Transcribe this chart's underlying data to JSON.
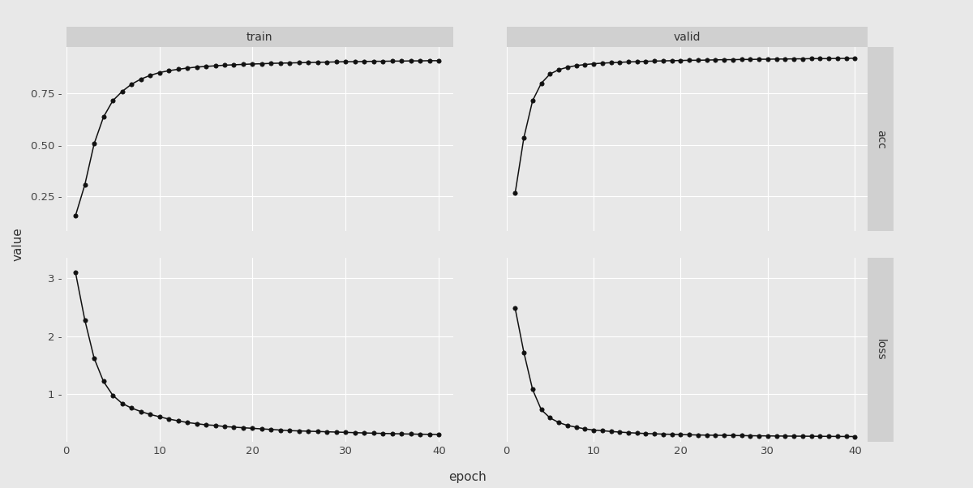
{
  "epochs": [
    1,
    2,
    3,
    4,
    5,
    6,
    7,
    8,
    9,
    10,
    11,
    12,
    13,
    14,
    15,
    16,
    17,
    18,
    19,
    20,
    21,
    22,
    23,
    24,
    25,
    26,
    27,
    28,
    29,
    30,
    31,
    32,
    33,
    34,
    35,
    36,
    37,
    38,
    39,
    40
  ],
  "train_acc": [
    0.155,
    0.305,
    0.505,
    0.635,
    0.715,
    0.76,
    0.795,
    0.82,
    0.838,
    0.852,
    0.861,
    0.868,
    0.874,
    0.879,
    0.882,
    0.885,
    0.888,
    0.89,
    0.892,
    0.894,
    0.895,
    0.897,
    0.898,
    0.899,
    0.9,
    0.901,
    0.902,
    0.903,
    0.904,
    0.905,
    0.905,
    0.906,
    0.907,
    0.907,
    0.908,
    0.908,
    0.909,
    0.909,
    0.91,
    0.91
  ],
  "train_loss": [
    3.1,
    2.28,
    1.62,
    1.22,
    0.98,
    0.84,
    0.76,
    0.7,
    0.65,
    0.61,
    0.57,
    0.54,
    0.51,
    0.49,
    0.47,
    0.46,
    0.44,
    0.43,
    0.42,
    0.41,
    0.4,
    0.39,
    0.38,
    0.37,
    0.365,
    0.36,
    0.355,
    0.35,
    0.345,
    0.34,
    0.335,
    0.33,
    0.326,
    0.322,
    0.318,
    0.314,
    0.311,
    0.308,
    0.306,
    0.303
  ],
  "valid_acc": [
    0.265,
    0.535,
    0.715,
    0.8,
    0.845,
    0.866,
    0.878,
    0.886,
    0.891,
    0.895,
    0.898,
    0.9,
    0.902,
    0.904,
    0.905,
    0.907,
    0.908,
    0.909,
    0.91,
    0.911,
    0.912,
    0.912,
    0.913,
    0.914,
    0.915,
    0.915,
    0.916,
    0.916,
    0.917,
    0.917,
    0.918,
    0.918,
    0.919,
    0.919,
    0.92,
    0.92,
    0.92,
    0.921,
    0.921,
    0.922
  ],
  "valid_loss": [
    2.48,
    1.72,
    1.08,
    0.73,
    0.59,
    0.51,
    0.46,
    0.43,
    0.4,
    0.38,
    0.37,
    0.355,
    0.345,
    0.335,
    0.327,
    0.32,
    0.315,
    0.31,
    0.306,
    0.302,
    0.298,
    0.295,
    0.292,
    0.29,
    0.288,
    0.286,
    0.284,
    0.282,
    0.28,
    0.279,
    0.277,
    0.276,
    0.275,
    0.274,
    0.273,
    0.272,
    0.271,
    0.27,
    0.269,
    0.268
  ],
  "bg_color": "#e8e8e8",
  "panel_bg": "#e8e8e8",
  "strip_bg": "#d0d0d0",
  "strip_text_color": "#333333",
  "line_color": "#111111",
  "marker_color": "#111111",
  "grid_color": "#ffffff",
  "axis_label_color": "#333333",
  "tick_label_color": "#444444",
  "xlabel": "epoch",
  "ylabel": "value",
  "col_labels": [
    "train",
    "valid"
  ],
  "row_labels": [
    "acc",
    "loss"
  ],
  "acc_yticks": [
    0.25,
    0.5,
    0.75
  ],
  "acc_ytick_labels": [
    "0.25 -",
    "0.50 -",
    "0.75 -"
  ],
  "acc_ylim": [
    0.08,
    0.975
  ],
  "loss_yticks": [
    1,
    2,
    3
  ],
  "loss_ytick_labels": [
    "1 -",
    "2 -",
    "3 -"
  ],
  "loss_ylim": [
    0.18,
    3.35
  ],
  "xticks": [
    0,
    10,
    20,
    30,
    40
  ],
  "xlim": [
    0,
    41.5
  ]
}
